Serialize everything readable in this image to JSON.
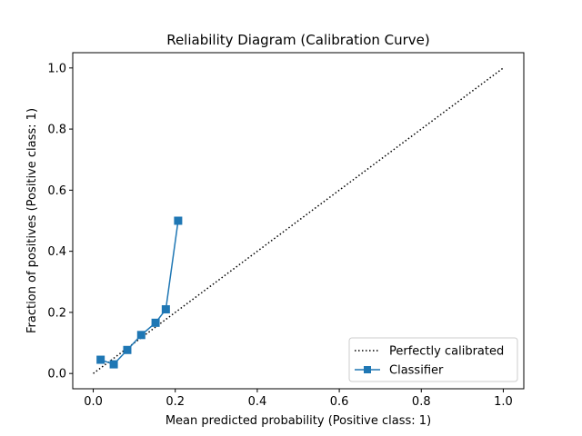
{
  "chart_data": {
    "type": "line",
    "title": "Reliability Diagram (Calibration Curve)",
    "xlabel": "Mean predicted probability (Positive class: 1)",
    "ylabel": "Fraction of positives (Positive class: 1)",
    "xlim": [
      -0.05,
      1.05
    ],
    "ylim": [
      -0.05,
      1.05
    ],
    "xticks": [
      0.0,
      0.2,
      0.4,
      0.6,
      0.8,
      1.0
    ],
    "yticks": [
      0.0,
      0.2,
      0.4,
      0.6,
      0.8,
      1.0
    ],
    "xtick_labels": [
      "0.0",
      "0.2",
      "0.4",
      "0.6",
      "0.8",
      "1.0"
    ],
    "ytick_labels": [
      "0.0",
      "0.2",
      "0.4",
      "0.6",
      "0.8",
      "1.0"
    ],
    "grid": false,
    "legend_position": "lower-right",
    "series": [
      {
        "name": "Perfectly calibrated",
        "style": "dotted",
        "color": "#000000",
        "x": [
          0.0,
          1.0
        ],
        "y": [
          0.0,
          1.0
        ]
      },
      {
        "name": "Classifier",
        "style": "solid",
        "marker": "square",
        "color": "#1f77b4",
        "x": [
          0.018,
          0.05,
          0.083,
          0.117,
          0.152,
          0.177,
          0.207
        ],
        "y": [
          0.045,
          0.03,
          0.077,
          0.126,
          0.166,
          0.21,
          0.5
        ]
      }
    ]
  }
}
